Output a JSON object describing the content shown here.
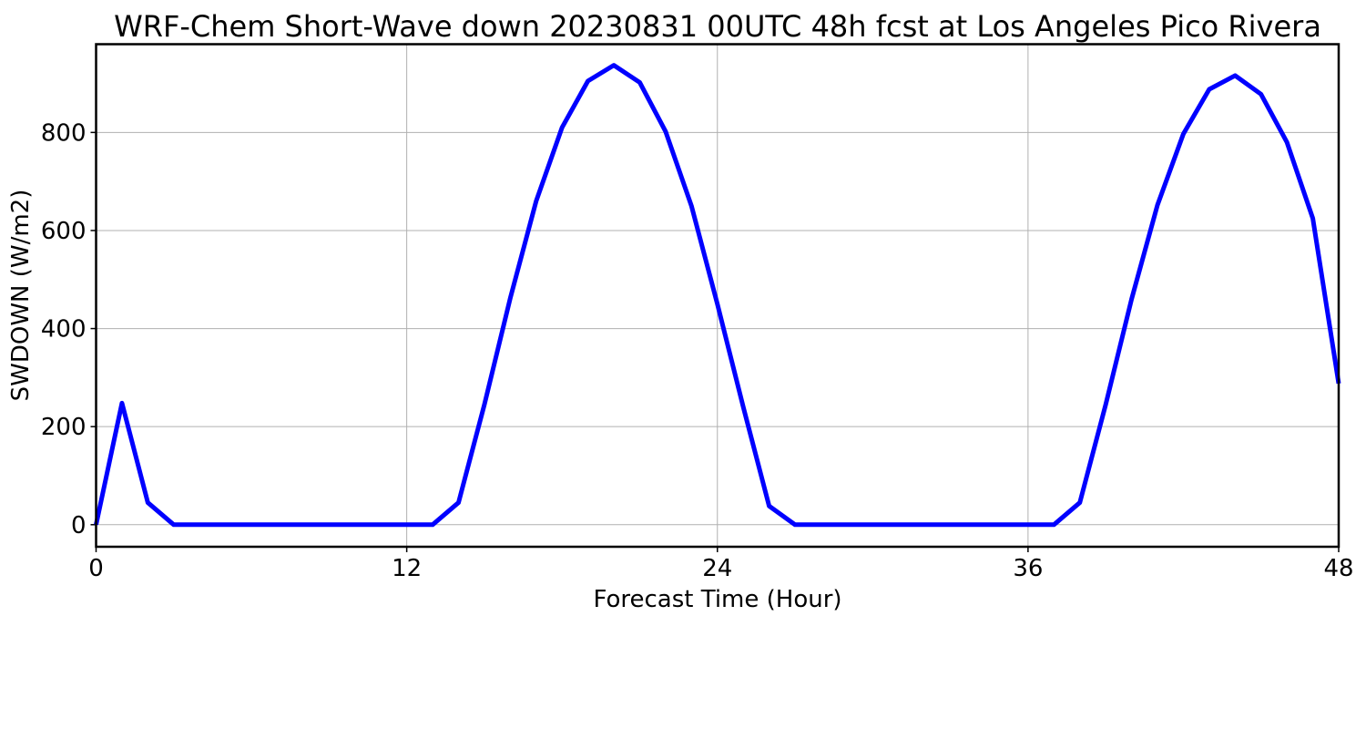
{
  "chart_data": {
    "type": "line",
    "title": "WRF-Chem Short-Wave down  20230831 00UTC 48h fcst at Los Angeles Pico Rivera",
    "xlabel": "Forecast Time (Hour)",
    "ylabel": "SWDOWN  (W/m2)",
    "xlim": [
      0,
      48
    ],
    "ylim": [
      -45,
      980
    ],
    "xticks": [
      0,
      12,
      24,
      36,
      48
    ],
    "yticks": [
      0,
      200,
      400,
      600,
      800
    ],
    "xtick_labels": [
      "0",
      "12",
      "24",
      "36",
      "48"
    ],
    "ytick_labels": [
      "0",
      "200",
      "400",
      "600",
      "800"
    ],
    "grid": true,
    "series": [
      {
        "color": "#0000ff",
        "x": [
          0,
          1,
          2,
          3,
          4,
          5,
          6,
          7,
          8,
          9,
          10,
          11,
          12,
          13,
          14,
          15,
          16,
          17,
          18,
          19,
          20,
          21,
          22,
          23,
          24,
          25,
          26,
          27,
          28,
          29,
          30,
          31,
          32,
          33,
          34,
          35,
          36,
          37,
          38,
          39,
          40,
          41,
          42,
          43,
          44,
          45,
          46,
          47,
          48
        ],
        "y": [
          0,
          248,
          45,
          0,
          0,
          0,
          0,
          0,
          0,
          0,
          0,
          0,
          0,
          0,
          45,
          245,
          462,
          660,
          810,
          905,
          937,
          902,
          802,
          650,
          450,
          240,
          38,
          0,
          0,
          0,
          0,
          0,
          0,
          0,
          0,
          0,
          0,
          0,
          45,
          245,
          460,
          652,
          797,
          888,
          916,
          878,
          780,
          625,
          288
        ]
      }
    ]
  }
}
